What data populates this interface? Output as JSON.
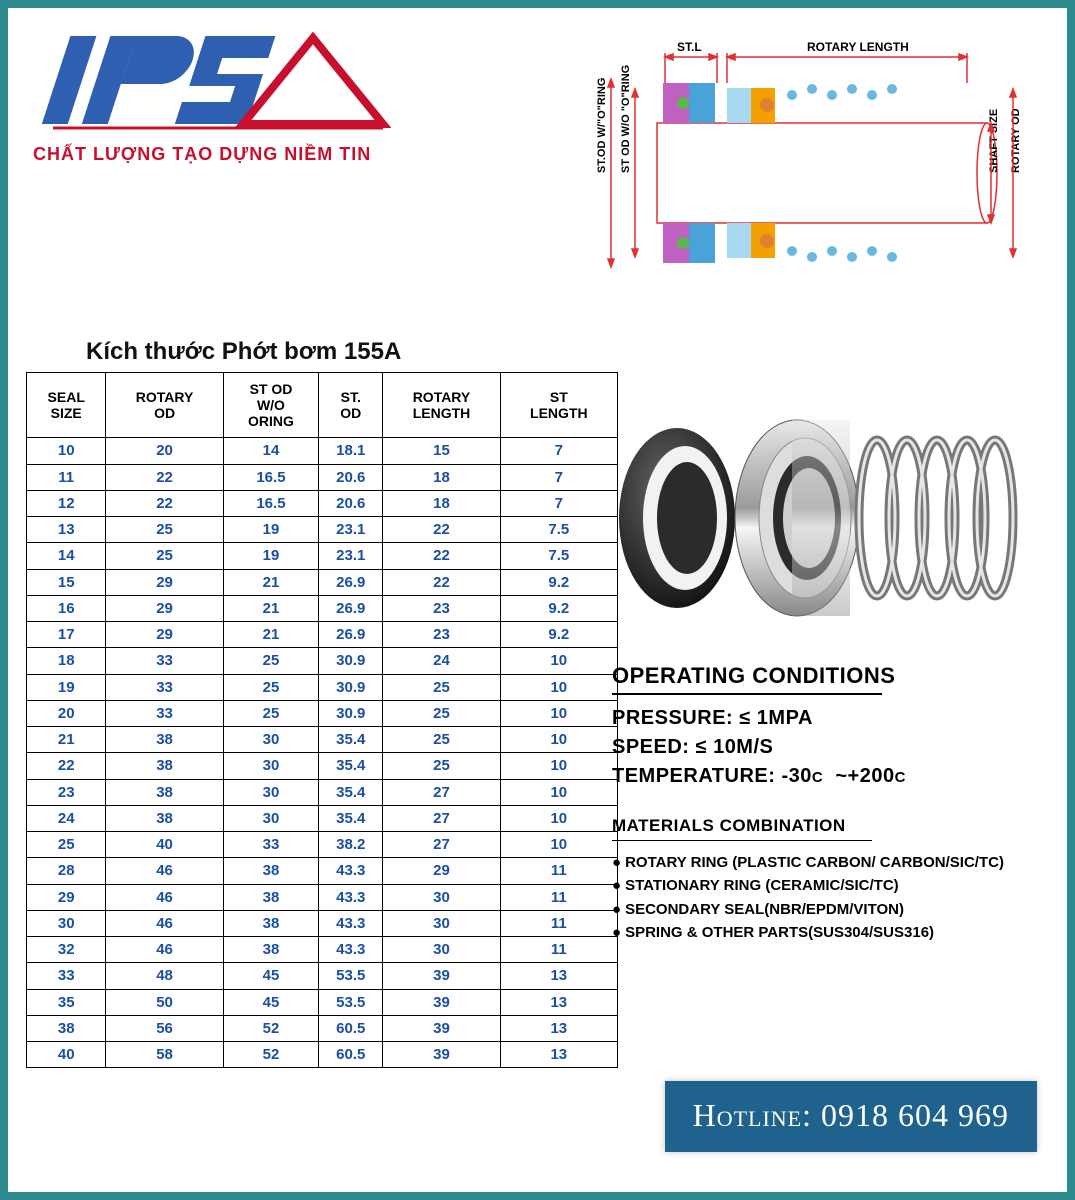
{
  "logo": {
    "name": "IPS",
    "tagline": "CHẤT LƯỢNG TẠO DỰNG NIỀM TIN",
    "colors": {
      "blue": "#2f5fb0",
      "red": "#c8102e"
    }
  },
  "diagram": {
    "labels": {
      "st_l": "ST.L",
      "rotary_length": "ROTARY LENGTH",
      "st_od_wo_oring_1": "ST.OD W/\"O\"RING",
      "st_od_wo_oring_2": "ST OD W/O \"O\"RING",
      "shaft_size": "SHAFT SIZE",
      "rotary_od": "ROTARY OD"
    },
    "colors": {
      "dimension": "#e03030",
      "body": "#4aa3d8",
      "accent1": "#f4a000",
      "accent2": "#58b94a",
      "accent3": "#c060c0",
      "light": "#a8d8f0"
    }
  },
  "table": {
    "title": "Kích thước Phớt bơm 155A",
    "columns": [
      "SEAL SIZE",
      "ROTARY OD",
      "ST OD W/O ORING",
      "ST. OD",
      "ROTARY LENGTH",
      "ST LENGTH"
    ],
    "rows": [
      [
        "10",
        "20",
        "14",
        "18.1",
        "15",
        "7"
      ],
      [
        "11",
        "22",
        "16.5",
        "20.6",
        "18",
        "7"
      ],
      [
        "12",
        "22",
        "16.5",
        "20.6",
        "18",
        "7"
      ],
      [
        "13",
        "25",
        "19",
        "23.1",
        "22",
        "7.5"
      ],
      [
        "14",
        "25",
        "19",
        "23.1",
        "22",
        "7.5"
      ],
      [
        "15",
        "29",
        "21",
        "26.9",
        "22",
        "9.2"
      ],
      [
        "16",
        "29",
        "21",
        "26.9",
        "23",
        "9.2"
      ],
      [
        "17",
        "29",
        "21",
        "26.9",
        "23",
        "9.2"
      ],
      [
        "18",
        "33",
        "25",
        "30.9",
        "24",
        "10"
      ],
      [
        "19",
        "33",
        "25",
        "30.9",
        "25",
        "10"
      ],
      [
        "20",
        "33",
        "25",
        "30.9",
        "25",
        "10"
      ],
      [
        "21",
        "38",
        "30",
        "35.4",
        "25",
        "10"
      ],
      [
        "22",
        "38",
        "30",
        "35.4",
        "25",
        "10"
      ],
      [
        "23",
        "38",
        "30",
        "35.4",
        "27",
        "10"
      ],
      [
        "24",
        "38",
        "30",
        "35.4",
        "27",
        "10"
      ],
      [
        "25",
        "40",
        "33",
        "38.2",
        "27",
        "10"
      ],
      [
        "28",
        "46",
        "38",
        "43.3",
        "29",
        "11"
      ],
      [
        "29",
        "46",
        "38",
        "43.3",
        "30",
        "11"
      ],
      [
        "30",
        "46",
        "38",
        "43.3",
        "30",
        "11"
      ],
      [
        "32",
        "46",
        "38",
        "43.3",
        "30",
        "11"
      ],
      [
        "33",
        "48",
        "45",
        "53.5",
        "39",
        "13"
      ],
      [
        "35",
        "50",
        "45",
        "53.5",
        "39",
        "13"
      ],
      [
        "38",
        "56",
        "52",
        "60.5",
        "39",
        "13"
      ],
      [
        "40",
        "58",
        "52",
        "60.5",
        "39",
        "13"
      ]
    ],
    "cell_color": "#1a4fa3"
  },
  "conditions": {
    "title": "OPERATING CONDITIONS",
    "pressure_label": "PRESSURE:",
    "pressure_value": "≤ 1MPA",
    "speed_label": "SPEED:",
    "speed_value": "≤ 10M/S",
    "temp_label": "TEMPERATURE:",
    "temp_value_low": "-30",
    "temp_value_high": "~+200",
    "temp_unit": "C"
  },
  "materials": {
    "title": "MATERIALS COMBINATION",
    "items": [
      "ROTARY RING (PLASTIC CARBON/ CARBON/SIC/TC)",
      "STATIONARY RING (CERAMIC/SIC/TC)",
      "SECONDARY SEAL(NBR/EPDM/VITON)",
      "SPRING & OTHER PARTS(SUS304/SUS316)"
    ]
  },
  "hotline": {
    "label": "Hotline:",
    "number": "0918 604 969",
    "bg_color": "#1f628e"
  }
}
